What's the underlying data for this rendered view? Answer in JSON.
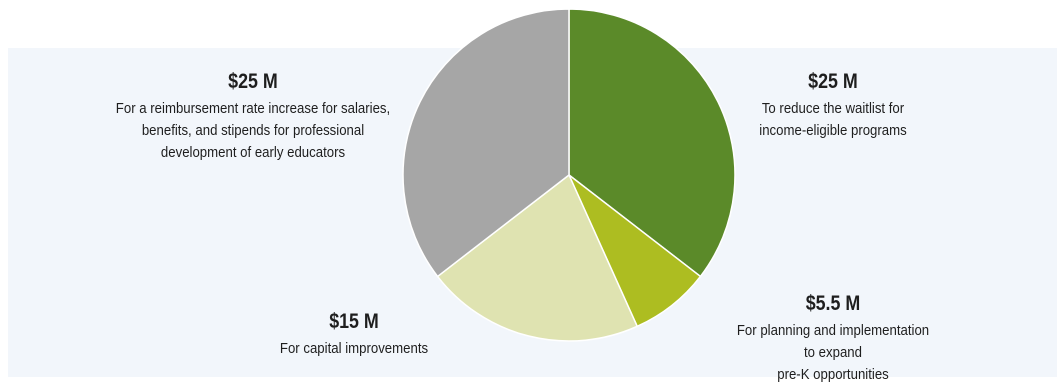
{
  "chart_data": {
    "type": "pie",
    "title": "",
    "slices": [
      {
        "label": "To reduce the waitlist for\nincome-eligible programs",
        "amount_label": "$25 M",
        "value": 25,
        "color": "#5b8a29"
      },
      {
        "label": "For planning and implementation to expand\npre-K opportunities",
        "amount_label": "$5.5 M",
        "value": 5.5,
        "color": "#adbd21"
      },
      {
        "label": "For capital improvements",
        "amount_label": "$15 M",
        "value": 15,
        "color": "#dfe3b1"
      },
      {
        "label": "For a reimbursement rate increase for salaries,\nbenefits, and stipends for professional\ndevelopment of early educators",
        "amount_label": "$25 M",
        "value": 25,
        "color": "#a6a6a6"
      }
    ],
    "start": "12 o'clock",
    "direction": "clockwise",
    "legend": "none"
  }
}
